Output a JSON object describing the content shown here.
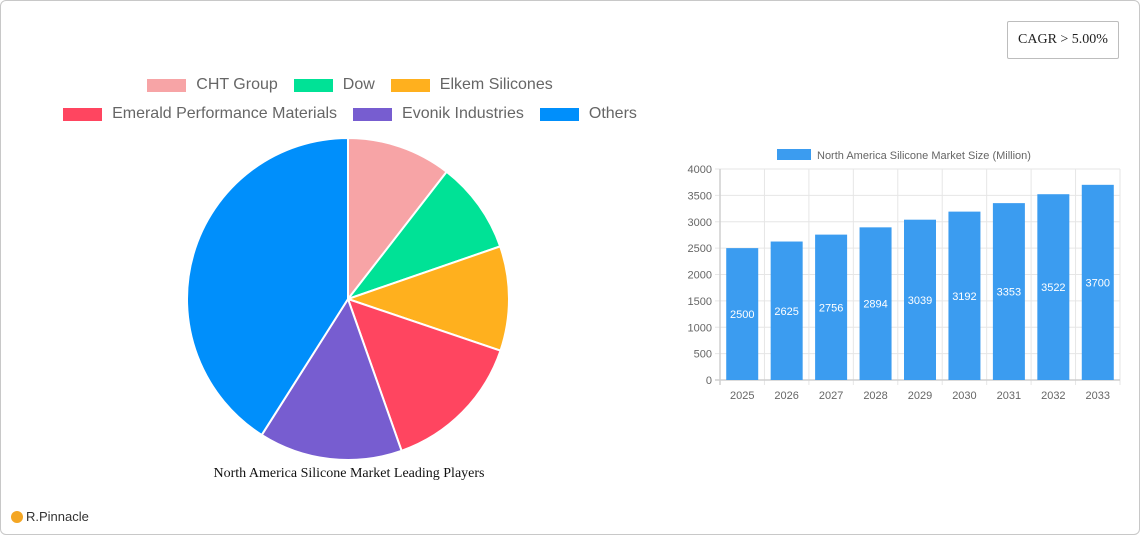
{
  "badge": {
    "cagr": "CAGR > 5.00%"
  },
  "brand": {
    "name": "R.Pinnacle",
    "icon": "logo-circle-icon"
  },
  "pie": {
    "title": "North America Silicone Market Leading Players",
    "legend_row1": [
      {
        "label": "CHT Group",
        "color": "#f7a4a6"
      },
      {
        "label": "Dow",
        "color": "#00e296"
      },
      {
        "label": "Elkem Silicones",
        "color": "#ffb01e"
      }
    ],
    "legend_row2": [
      {
        "label": "Emerald Performance Materials",
        "color": "#ff4560"
      },
      {
        "label": "Evonik Industries",
        "color": "#775dd0"
      },
      {
        "label": "Others",
        "color": "#008ffb"
      }
    ]
  },
  "bar": {
    "legend_label": "North America Silicone Market Size (Million)",
    "color": "#3b9cf0"
  },
  "chart_data": [
    {
      "type": "pie",
      "title": "North America Silicone Market Leading Players",
      "categories": [
        "CHT Group",
        "Dow",
        "Elkem Silicones",
        "Emerald Performance Materials",
        "Evonik Industries",
        "Others"
      ],
      "values": [
        10.5,
        9.2,
        10.5,
        14.4,
        14.4,
        41.0
      ],
      "colors": [
        "#f7a4a6",
        "#00e296",
        "#ffb01e",
        "#ff4560",
        "#775dd0",
        "#008ffb"
      ],
      "legend_position": "top"
    },
    {
      "type": "bar",
      "title": "",
      "categories": [
        "2025",
        "2026",
        "2027",
        "2028",
        "2029",
        "2030",
        "2031",
        "2032",
        "2033"
      ],
      "series": [
        {
          "name": "North America Silicone Market Size (Million)",
          "values": [
            2500,
            2625,
            2756,
            2894,
            3039,
            3192,
            3353,
            3522,
            3700
          ]
        }
      ],
      "xlabel": "",
      "ylabel": "",
      "ylim": [
        0,
        4000
      ],
      "yticks": [
        0,
        500,
        1000,
        1500,
        2000,
        2500,
        3000,
        3500,
        4000
      ],
      "grid": true,
      "legend_position": "top",
      "data_labels": true
    }
  ]
}
